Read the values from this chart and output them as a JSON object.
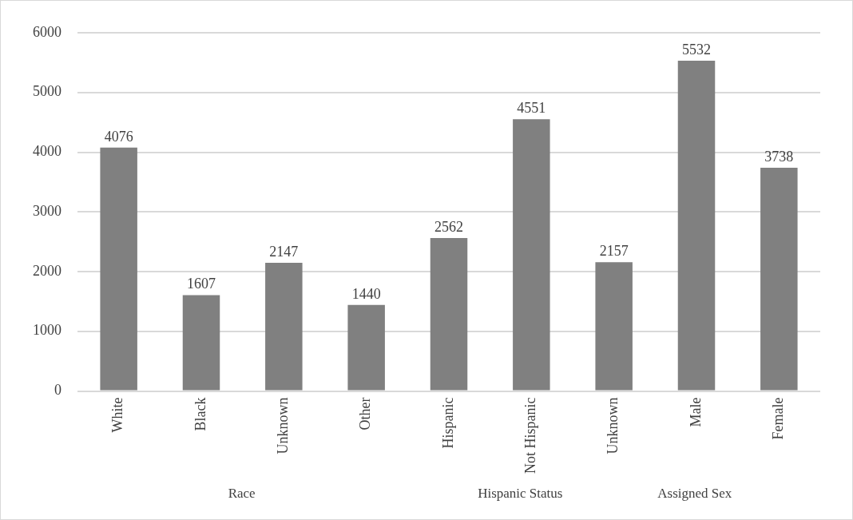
{
  "chart_data": {
    "type": "bar",
    "categories": [
      "White",
      "Black",
      "Unknown",
      "Other",
      "Hispanic",
      "Not Hispanic",
      "Unknown",
      "Male",
      "Female"
    ],
    "values": [
      4076,
      1607,
      2147,
      1440,
      2562,
      4551,
      2157,
      5532,
      3738
    ],
    "color": "#808080",
    "ylim": [
      0,
      6000
    ],
    "yticks": [
      0,
      1000,
      2000,
      3000,
      4000,
      5000,
      6000
    ],
    "grid": "y",
    "legend": false,
    "data_labels": true,
    "annotations": [
      "Race",
      "Hispanic Status",
      "Assigned Sex"
    ]
  }
}
